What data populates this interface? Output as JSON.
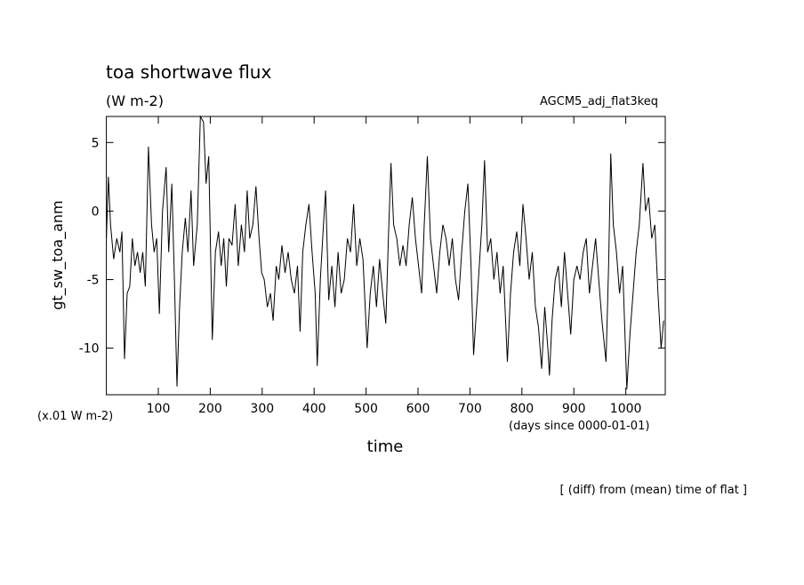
{
  "chart_data": {
    "type": "line",
    "title": "toa shortwave flux",
    "subtitle": "(W m-2)",
    "annotation": "AGCM5_adj_flat3keq",
    "y_label": "gt_sw_toa_anm",
    "x_label": "time",
    "y_unit_note": "(x.01 W m-2)",
    "x_unit_note": "(days since 0000-01-01)",
    "footer": "[ (diff) from (mean) time of flat ]",
    "color": "#000000",
    "grid": false,
    "xlim": [
      0,
      1076
    ],
    "ylim": [
      -13.4,
      6.9
    ],
    "xticks": [
      100,
      200,
      300,
      400,
      500,
      600,
      700,
      800,
      900,
      1000
    ],
    "yticks": [
      5,
      0,
      -5,
      -10
    ],
    "x": [
      0,
      4,
      8,
      14,
      20,
      26,
      30,
      35,
      40,
      45,
      50,
      55,
      60,
      65,
      70,
      75,
      81,
      87,
      92,
      97,
      102,
      108,
      115,
      120,
      126,
      131,
      136,
      141,
      146,
      152,
      157,
      163,
      168,
      175,
      181,
      187,
      192,
      197,
      204,
      210,
      216,
      221,
      226,
      231,
      236,
      242,
      248,
      254,
      260,
      266,
      271,
      276,
      282,
      288,
      294,
      299,
      304,
      310,
      316,
      321,
      327,
      332,
      338,
      344,
      350,
      356,
      362,
      368,
      373,
      378,
      384,
      390,
      396,
      402,
      406,
      412,
      418,
      422,
      428,
      434,
      440,
      446,
      452,
      458,
      464,
      470,
      476,
      482,
      488,
      494,
      502,
      508,
      514,
      520,
      526,
      532,
      538,
      543,
      548,
      553,
      559,
      565,
      571,
      577,
      583,
      589,
      595,
      601,
      607,
      612,
      618,
      624,
      630,
      636,
      642,
      648,
      654,
      660,
      666,
      672,
      678,
      684,
      690,
      696,
      702,
      707,
      713,
      718,
      723,
      728,
      734,
      740,
      746,
      752,
      758,
      764,
      772,
      778,
      784,
      790,
      796,
      802,
      808,
      814,
      820,
      826,
      832,
      838,
      844,
      850,
      853,
      858,
      864,
      870,
      876,
      882,
      888,
      894,
      900,
      906,
      912,
      918,
      924,
      930,
      936,
      942,
      948,
      954,
      962,
      967,
      971,
      976,
      982,
      988,
      994,
      1002,
      1008,
      1014,
      1020,
      1026,
      1033,
      1038,
      1044,
      1050,
      1056,
      1062,
      1068,
      1073
    ],
    "values": [
      -2,
      2.5,
      -1,
      -3.5,
      -2,
      -3,
      -1.5,
      -10.8,
      -6,
      -5.5,
      -2,
      -4,
      -3,
      -4.5,
      -3,
      -5.5,
      4.7,
      -1,
      -3,
      -2,
      -7.5,
      0,
      3.2,
      -3,
      2,
      -5,
      -12.8,
      -7,
      -3,
      -0.5,
      -3,
      1.5,
      -4,
      -1,
      6.9,
      6.5,
      2,
      4,
      -9.4,
      -3,
      -1.5,
      -4,
      -2,
      -5.5,
      -2,
      -2.5,
      0.5,
      -4,
      -1,
      -3,
      1.5,
      -2,
      -1,
      1.8,
      -2,
      -4.5,
      -5,
      -7,
      -6,
      -8,
      -4,
      -5,
      -2.5,
      -4.5,
      -3,
      -5,
      -6,
      -4,
      -8.8,
      -3,
      -1,
      0.5,
      -3,
      -6,
      -11.3,
      -5,
      -1,
      1.5,
      -6.5,
      -4,
      -7,
      -3,
      -6,
      -5,
      -2,
      -3,
      0.5,
      -4,
      -2,
      -3.5,
      -10,
      -6,
      -4,
      -7,
      -3.5,
      -6,
      -8.2,
      -2,
      3.5,
      -1,
      -2,
      -4,
      -2.5,
      -4,
      -1,
      1,
      -2,
      -4,
      -6,
      -1,
      4,
      -2,
      -4,
      -6,
      -3,
      -1,
      -2,
      -4,
      -2,
      -5,
      -6.5,
      -3,
      0,
      2,
      -4,
      -10.5,
      -7,
      -4,
      -1,
      3.7,
      -3,
      -2,
      -5,
      -3,
      -6,
      -4,
      -11,
      -6,
      -3,
      -1.5,
      -4,
      0.5,
      -2,
      -5,
      -3,
      -7,
      -8.5,
      -11.5,
      -7,
      -10,
      -12,
      -8,
      -5,
      -4,
      -7,
      -3,
      -6,
      -9,
      -5,
      -4,
      -5,
      -3,
      -2,
      -6,
      -4,
      -2,
      -5,
      -8,
      -11,
      -4,
      4.2,
      -1,
      -3,
      -6,
      -4,
      -13,
      -9,
      -6,
      -3,
      -1,
      3.5,
      0,
      1,
      -2,
      -1,
      -6,
      -10,
      -8
    ]
  }
}
